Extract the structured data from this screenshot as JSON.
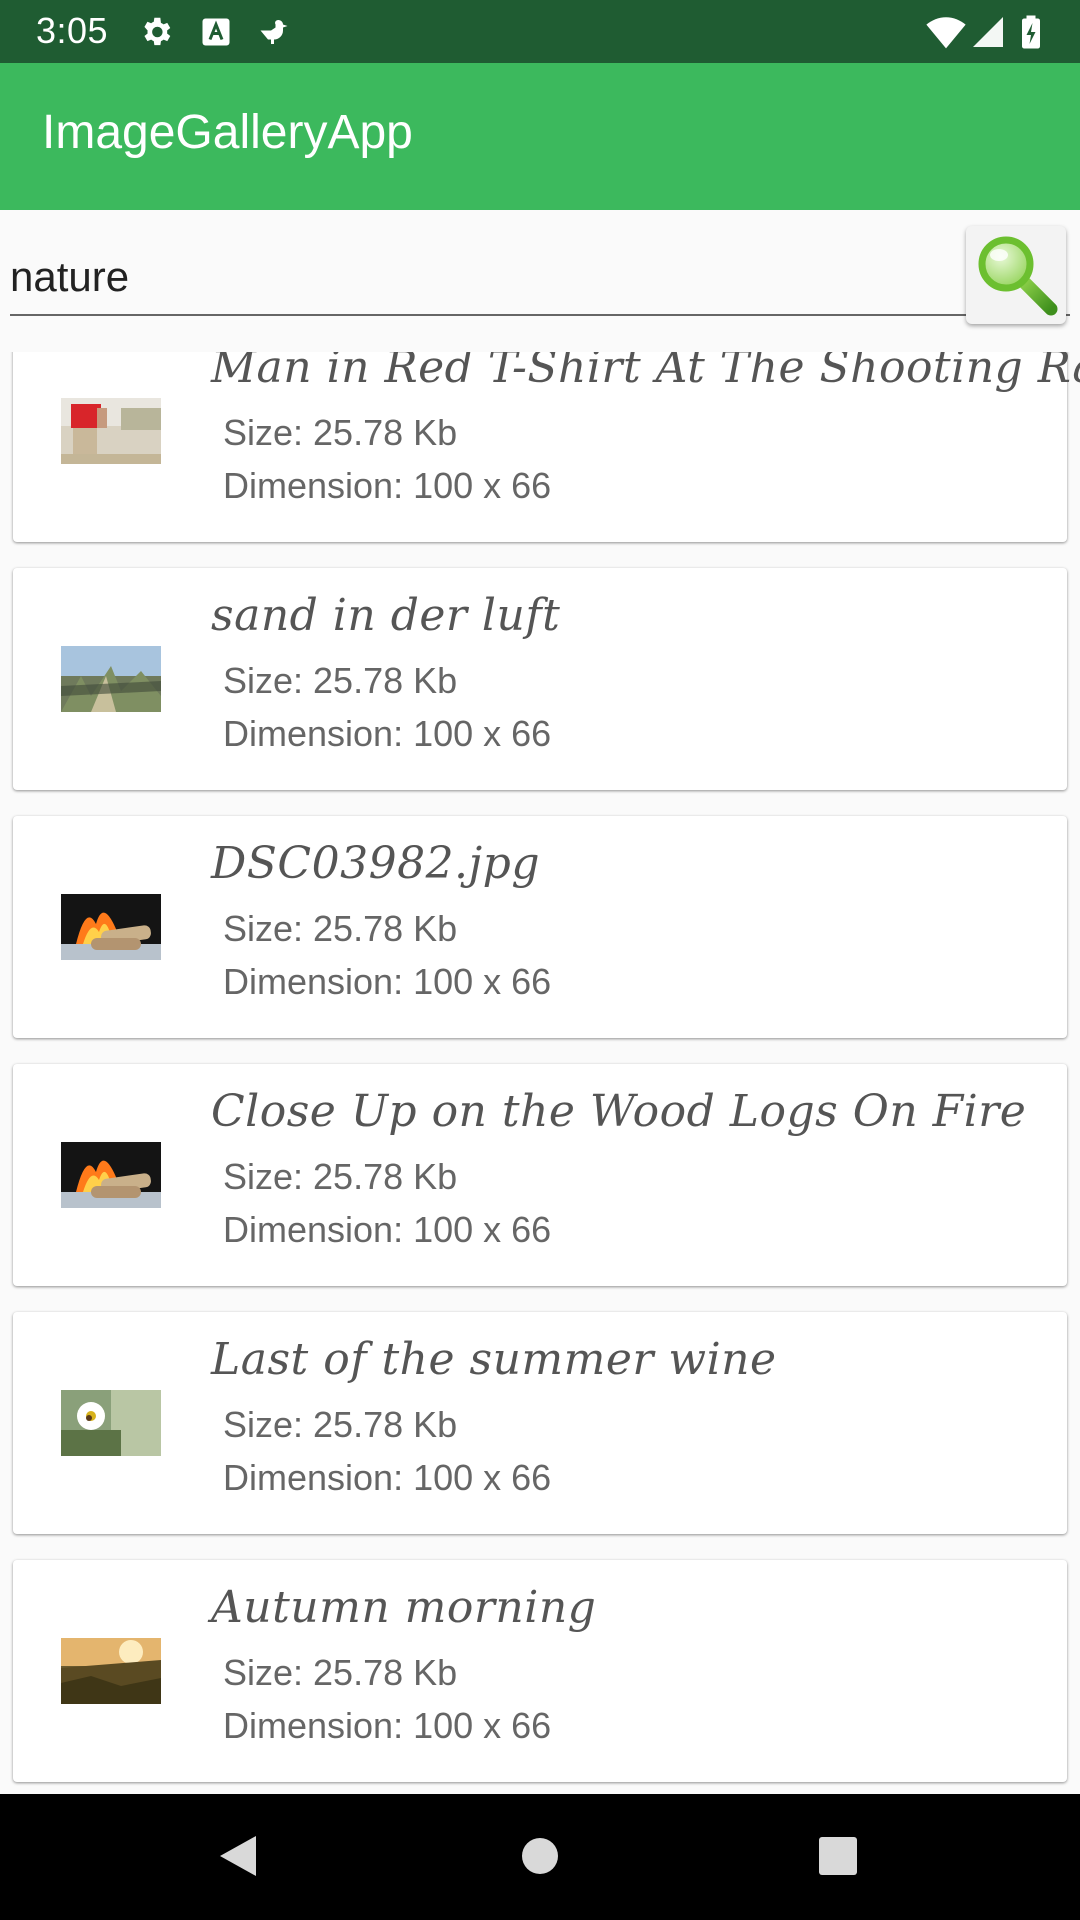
{
  "status_bar": {
    "time": "3:05",
    "icons": [
      "gear-icon",
      "text-a-icon",
      "bird-icon",
      "wifi-icon",
      "signal-icon",
      "battery-icon"
    ]
  },
  "app_bar": {
    "title": "ImageGalleryApp",
    "color": "#3cb95d"
  },
  "search": {
    "value": "nature",
    "button_icon": "magnifier-icon"
  },
  "items": [
    {
      "title": "Man in Red T-Shirt At The Shooting Range",
      "size": "Size: 25.78 Kb",
      "dimension": "Dimension: 100 x 66"
    },
    {
      "title": "sand in der luft",
      "size": "Size: 25.78 Kb",
      "dimension": "Dimension: 100 x 66"
    },
    {
      "title": "DSC03982.jpg",
      "size": "Size: 25.78 Kb",
      "dimension": "Dimension: 100 x 66"
    },
    {
      "title": "Close Up on the Wood Logs On Fire",
      "size": "Size: 25.78 Kb",
      "dimension": "Dimension: 100 x 66"
    },
    {
      "title": "Last of the summer wine",
      "size": "Size: 25.78 Kb",
      "dimension": "Dimension: 100 x 66"
    },
    {
      "title": "Autumn morning",
      "size": "Size: 25.78 Kb",
      "dimension": "Dimension: 100 x 66"
    }
  ],
  "nav_bar": {
    "icons": [
      "back-icon",
      "home-icon",
      "recents-icon"
    ]
  }
}
